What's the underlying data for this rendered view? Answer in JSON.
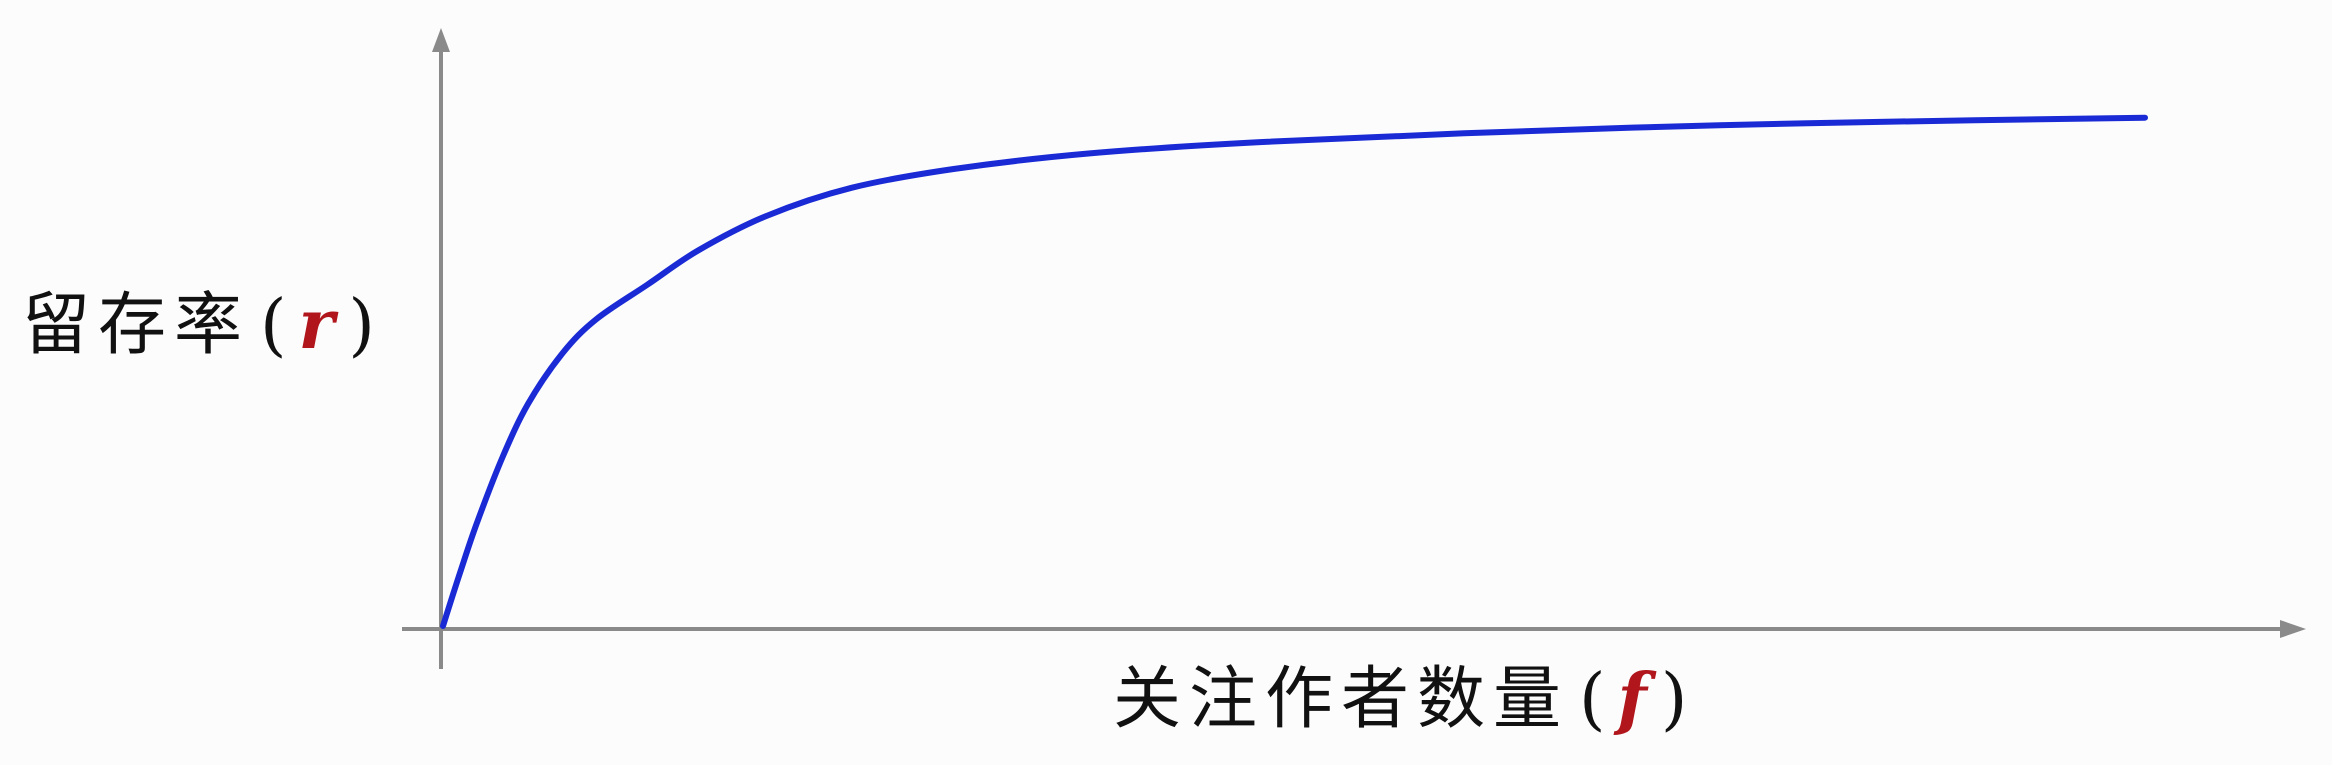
{
  "chart_data": {
    "type": "line",
    "ylabel": {
      "text": "留存率",
      "open_paren": "(",
      "symbol": "r",
      "close_paren": ")"
    },
    "xlabel": {
      "text": "关注作者数量",
      "open_paren": "(",
      "symbol": "f",
      "close_paren": ")"
    },
    "xlim": [
      0,
      1
    ],
    "ylim": [
      0,
      1
    ],
    "grid": false,
    "series": [
      {
        "color": "#1a2bd6",
        "points": [
          [
            0.0,
            0.0
          ],
          [
            0.01,
            0.085
          ],
          [
            0.02,
            0.165
          ],
          [
            0.035,
            0.27
          ],
          [
            0.05,
            0.355
          ],
          [
            0.07,
            0.435
          ],
          [
            0.09,
            0.49
          ],
          [
            0.12,
            0.545
          ],
          [
            0.15,
            0.6
          ],
          [
            0.19,
            0.655
          ],
          [
            0.24,
            0.7
          ],
          [
            0.3,
            0.73
          ],
          [
            0.38,
            0.755
          ],
          [
            0.48,
            0.773
          ],
          [
            0.6,
            0.787
          ],
          [
            0.75,
            0.8
          ],
          [
            0.9,
            0.808
          ],
          [
            1.0,
            0.812
          ]
        ]
      }
    ],
    "colors": {
      "axis": "#8a8a8a",
      "symbol": "#b0161c",
      "label": "#111111"
    }
  }
}
